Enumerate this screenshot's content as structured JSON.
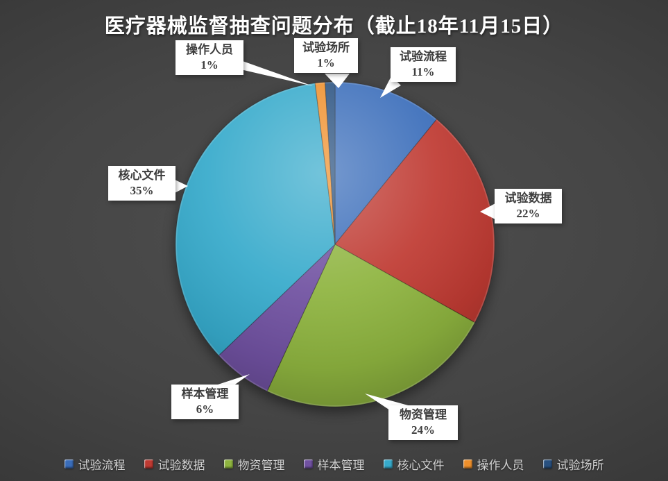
{
  "title": "医疗器械监督抽查问题分布（截止18年11月15日）",
  "chart_data": {
    "type": "pie",
    "title": "医疗器械监督抽查问题分布（截止18年11月15日）",
    "start_angle": "12-oclock",
    "direction": "clockwise",
    "legend_position": "bottom",
    "background": {
      "center": "#4F4F4F",
      "edge": "#262626"
    },
    "categories": [
      "试验流程",
      "试验数据",
      "物资管理",
      "样本管理",
      "核心文件",
      "操作人员",
      "试验场所"
    ],
    "values": [
      11,
      22,
      24,
      6,
      35,
      1,
      1
    ],
    "series": [
      {
        "name": "试验流程",
        "value": 11,
        "pct": "11%",
        "color": "#3A6DBA"
      },
      {
        "name": "试验数据",
        "value": 22,
        "pct": "22%",
        "color": "#BF3A32"
      },
      {
        "name": "物资管理",
        "value": 24,
        "pct": "24%",
        "color": "#8EB43F"
      },
      {
        "name": "样本管理",
        "value": 6,
        "pct": "6%",
        "color": "#7051A1"
      },
      {
        "name": "核心文件",
        "value": 35,
        "pct": "35%",
        "color": "#36AACB"
      },
      {
        "name": "操作人员",
        "value": 1,
        "pct": "1%",
        "color": "#EE8F2B"
      },
      {
        "name": "试验场所",
        "value": 1,
        "pct": "1%",
        "color": "#28507F"
      }
    ]
  }
}
